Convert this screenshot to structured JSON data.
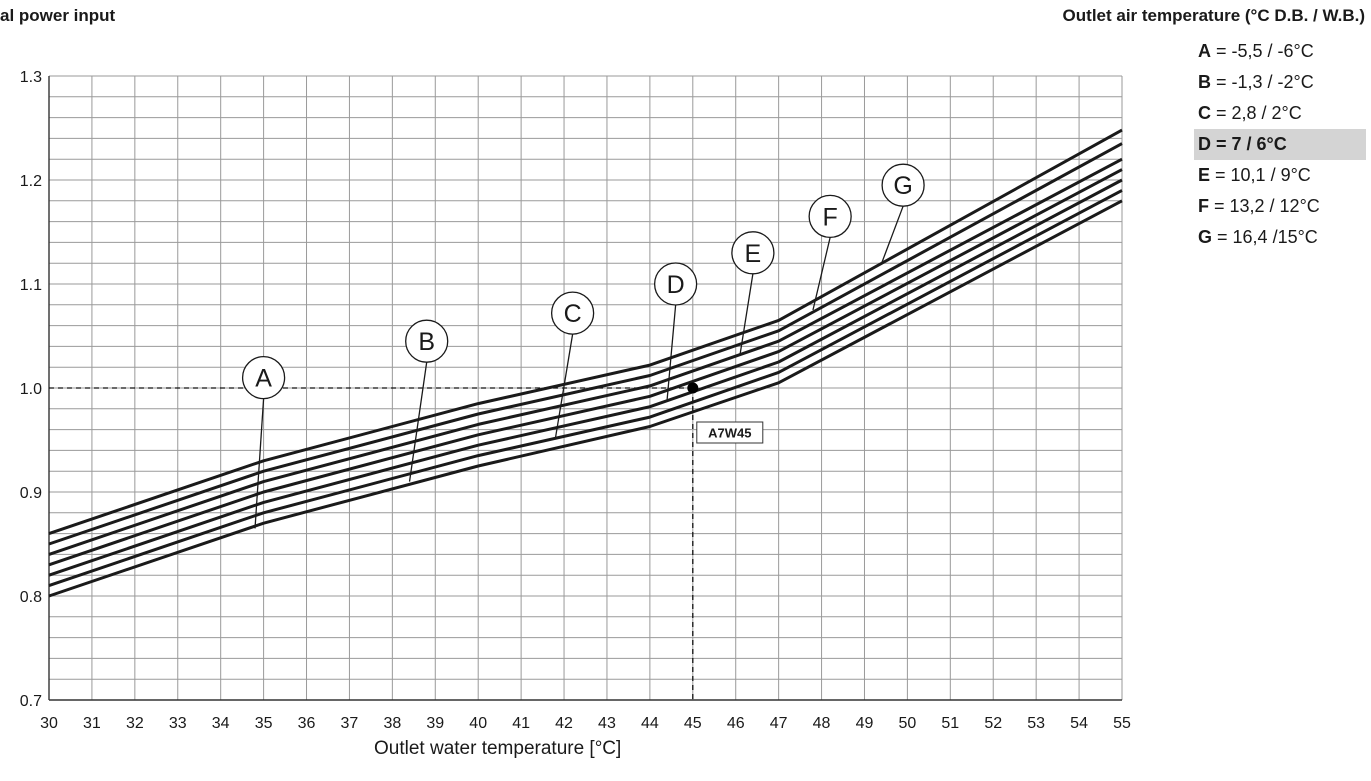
{
  "chart_data": {
    "type": "line",
    "title": "",
    "ylabel": "al power input",
    "xlabel": "Outlet water temperature [°C]",
    "xlim": [
      30,
      55
    ],
    "ylim": [
      0.7,
      1.3
    ],
    "x_ticks": [
      "30",
      "31",
      "32",
      "33",
      "34",
      "35",
      "36",
      "37",
      "38",
      "39",
      "40",
      "41",
      "42",
      "43",
      "44",
      "45",
      "46",
      "47",
      "48",
      "49",
      "50",
      "51",
      "52",
      "53",
      "54",
      "55"
    ],
    "y_ticks": [
      "0.7",
      "0.8",
      "0.9",
      "1.0",
      "1.1",
      "1.2",
      "1.3"
    ],
    "grid": true,
    "legend_title": "Outlet air temperature (°C D.B. / W.B.)",
    "legend": [
      {
        "key": "A",
        "text": " =  -5,5 / -6°C",
        "highlight": false
      },
      {
        "key": "B",
        "text": " = -1,3 / -2°C",
        "highlight": false
      },
      {
        "key": "C",
        "text": " = 2,8 / 2°C",
        "highlight": false
      },
      {
        "key": "D",
        "text": " = 7 / 6°C",
        "highlight": true
      },
      {
        "key": "E",
        "text": " = 10,1 / 9°C",
        "highlight": false
      },
      {
        "key": "F",
        "text": " = 13,2 / 12°C",
        "highlight": false
      },
      {
        "key": "G",
        "text": " = 16,4 /15°C",
        "highlight": false
      }
    ],
    "series": [
      {
        "name": "A",
        "x": [
          30,
          35,
          40,
          44,
          47,
          55
        ],
        "y": [
          0.8,
          0.87,
          0.925,
          0.963,
          1.005,
          1.18
        ],
        "callout": {
          "x": 35.0,
          "y": 1.01,
          "tip_x": 34.8,
          "tip_y": 0.865
        }
      },
      {
        "name": "B",
        "x": [
          30,
          35,
          40,
          44,
          47,
          55
        ],
        "y": [
          0.81,
          0.88,
          0.935,
          0.972,
          1.015,
          1.19
        ],
        "callout": {
          "x": 38.8,
          "y": 1.045,
          "tip_x": 38.4,
          "tip_y": 0.91
        }
      },
      {
        "name": "C",
        "x": [
          30,
          35,
          40,
          44,
          47,
          55
        ],
        "y": [
          0.82,
          0.89,
          0.945,
          0.982,
          1.025,
          1.2
        ],
        "callout": {
          "x": 42.2,
          "y": 1.072,
          "tip_x": 41.8,
          "tip_y": 0.952
        }
      },
      {
        "name": "D",
        "x": [
          30,
          35,
          40,
          44,
          47,
          55
        ],
        "y": [
          0.83,
          0.9,
          0.955,
          0.992,
          1.035,
          1.21
        ],
        "callout": {
          "x": 44.6,
          "y": 1.1,
          "tip_x": 44.4,
          "tip_y": 0.988
        }
      },
      {
        "name": "E",
        "x": [
          30,
          35,
          40,
          44,
          47,
          55
        ],
        "y": [
          0.84,
          0.91,
          0.965,
          1.002,
          1.045,
          1.22
        ],
        "callout": {
          "x": 46.4,
          "y": 1.13,
          "tip_x": 46.1,
          "tip_y": 1.032
        }
      },
      {
        "name": "F",
        "x": [
          30,
          35,
          40,
          44,
          47,
          55
        ],
        "y": [
          0.85,
          0.92,
          0.975,
          1.012,
          1.055,
          1.235
        ],
        "callout": {
          "x": 48.2,
          "y": 1.165,
          "tip_x": 47.8,
          "tip_y": 1.075
        }
      },
      {
        "name": "G",
        "x": [
          30,
          35,
          40,
          44,
          47,
          55
        ],
        "y": [
          0.86,
          0.93,
          0.985,
          1.022,
          1.065,
          1.248
        ],
        "callout": {
          "x": 49.9,
          "y": 1.195,
          "tip_x": 49.4,
          "tip_y": 1.12
        }
      }
    ],
    "annotations": [
      {
        "type": "point",
        "label": "A7W45",
        "x": 45,
        "y": 1.0
      }
    ]
  }
}
